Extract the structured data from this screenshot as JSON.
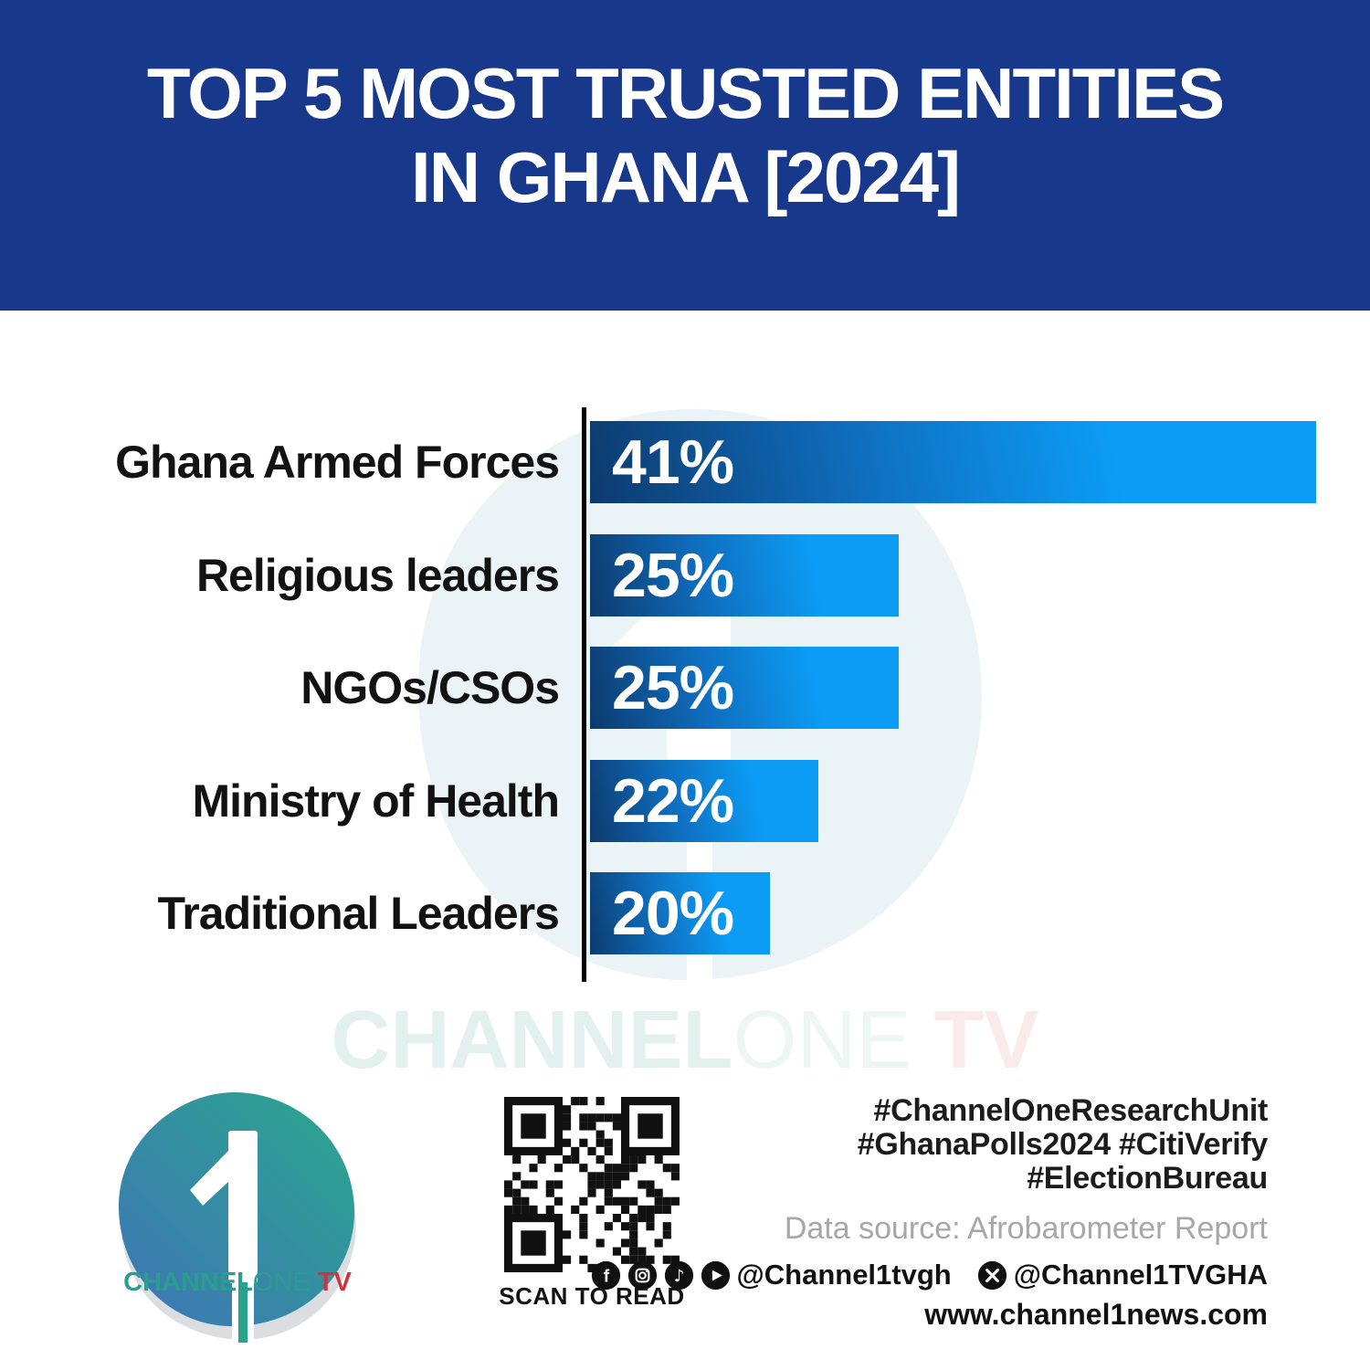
{
  "header": {
    "title_line1": "TOP 5 MOST TRUSTED ENTITIES",
    "title_line2": "IN GHANA [2024]"
  },
  "chart_data": {
    "type": "bar",
    "orientation": "horizontal",
    "title": "Top 5 Most Trusted Entities in Ghana [2024]",
    "categories": [
      "Ghana Armed Forces",
      "Religious leaders",
      "NGOs/CSOs",
      "Ministry of Health",
      "Traditional Leaders"
    ],
    "values": [
      41,
      25,
      25,
      22,
      20
    ],
    "value_labels": [
      "41%",
      "25%",
      "25%",
      "22%",
      "20%"
    ],
    "xlim": [
      0,
      41
    ],
    "grid": false,
    "legend": false,
    "axis_color": "#000000",
    "bar_gradient": [
      "#0d3a6e",
      "#0c9cf5"
    ],
    "bar_display_width_frac": [
      1.0,
      0.425,
      0.425,
      0.315,
      0.248
    ]
  },
  "watermark": {
    "brand_bold": "CHANNEL",
    "brand_light": "ONE",
    "brand_tv": " TV"
  },
  "footer": {
    "logo": {
      "numeral": "1",
      "brand_bold": "CHANNEL",
      "brand_light": "ONE",
      "brand_tv": " TV"
    },
    "qr_caption": "SCAN TO READ",
    "hashtags": [
      "#ChannelOneResearchUnit",
      "#GhanaPolls2024 #CitiVerify",
      "#ElectionBureau"
    ],
    "data_source": "Data source: Afrobarometer Report",
    "social_icons": [
      "facebook",
      "instagram",
      "tiktok",
      "youtube"
    ],
    "social_handle_main": "@Channel1tvgh",
    "social_handle_x": "@Channel1TVGHA",
    "website": "www.channel1news.com"
  },
  "colors": {
    "banner_blue": "#18388b",
    "bar_dark": "#0d3a6e",
    "bar_bright": "#0c9cf5",
    "teal": "#2a9d8f",
    "red": "#cf3341",
    "gray_text": "#a7a7a7",
    "black_text": "#1c1c1c"
  }
}
